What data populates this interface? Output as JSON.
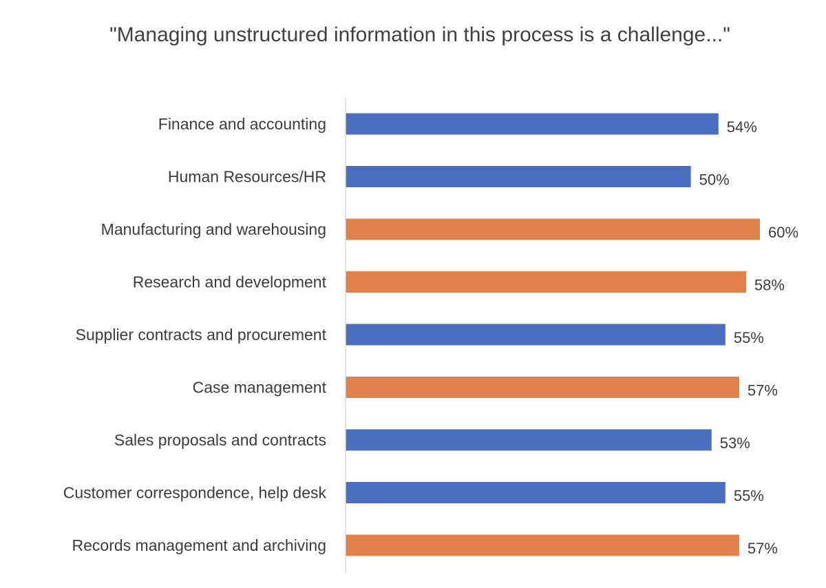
{
  "chart_data": {
    "type": "bar",
    "orientation": "horizontal",
    "title": "\"Managing unstructured information in this process is a challenge...\"",
    "categories": [
      "Finance and accounting",
      "Human Resources/HR",
      "Manufacturing and warehousing",
      "Research and development",
      "Supplier contracts and procurement",
      "Case management",
      "Sales proposals and contracts",
      "Customer correspondence, help desk",
      "Records management and archiving"
    ],
    "values": [
      54,
      50,
      60,
      58,
      55,
      57,
      53,
      55,
      57
    ],
    "data_labels": [
      "54%",
      "50%",
      "60%",
      "58%",
      "55%",
      "57%",
      "53%",
      "55%",
      "57%"
    ],
    "bar_colors": [
      "#4a6fbf",
      "#4a6fbf",
      "#e0814b",
      "#e0814b",
      "#4a6fbf",
      "#e0814b",
      "#4a6fbf",
      "#4a6fbf",
      "#e0814b"
    ],
    "xlim": [
      0,
      60
    ],
    "xlabel": "",
    "ylabel": "",
    "grid": false,
    "legend": "none",
    "axis_color": "#d9d9d9"
  }
}
